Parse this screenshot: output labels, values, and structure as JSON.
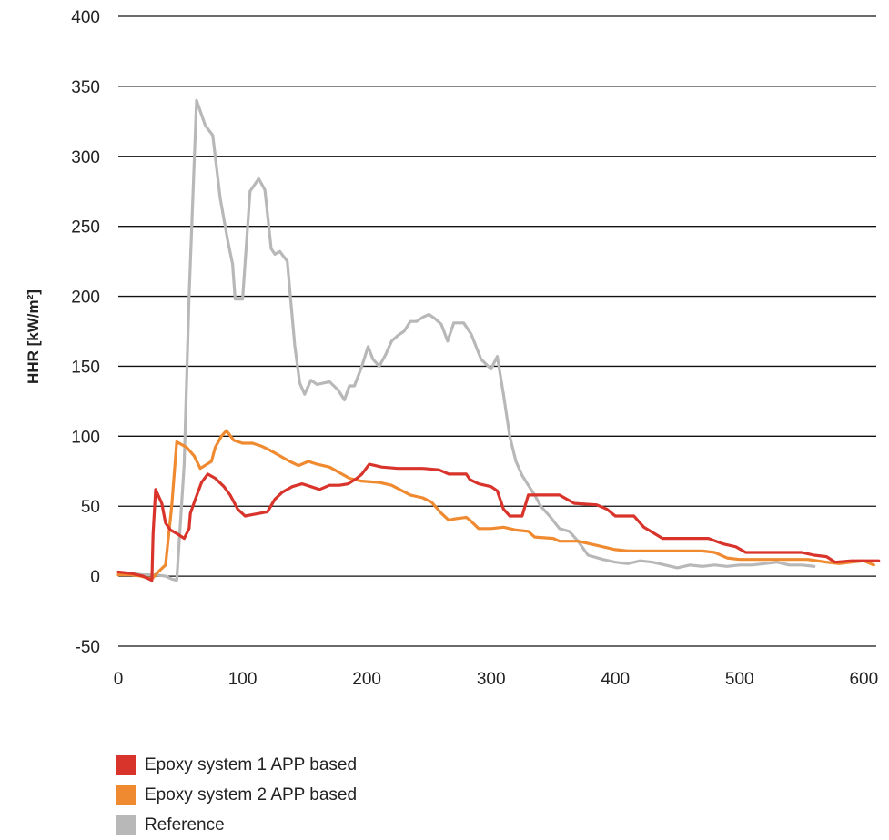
{
  "chart_data": {
    "type": "line",
    "title": "",
    "xlabel": "",
    "ylabel": "HHR [kW/m²]",
    "xlim": [
      0,
      610
    ],
    "ylim": [
      -50,
      400
    ],
    "x_ticks": [
      "0",
      "100",
      "200",
      "300",
      "400",
      "500",
      "600"
    ],
    "y_ticks": [
      "400",
      "350",
      "300",
      "250",
      "200",
      "150",
      "100",
      "50",
      "0",
      "-50"
    ],
    "grid": "horizontal",
    "legend_position": "bottom-left",
    "series": [
      {
        "name": "Epoxy system 1 APP based",
        "color": "#d9342b",
        "points": [
          [
            0,
            3
          ],
          [
            10,
            2
          ],
          [
            20,
            0
          ],
          [
            27,
            -3
          ],
          [
            28,
            30
          ],
          [
            30,
            62
          ],
          [
            35,
            52
          ],
          [
            38,
            38
          ],
          [
            42,
            33
          ],
          [
            48,
            30
          ],
          [
            53,
            27
          ],
          [
            57,
            34
          ],
          [
            58,
            45
          ],
          [
            62,
            55
          ],
          [
            67,
            67
          ],
          [
            72,
            73
          ],
          [
            78,
            70
          ],
          [
            85,
            64
          ],
          [
            90,
            58
          ],
          [
            96,
            48
          ],
          [
            102,
            43
          ],
          [
            108,
            44
          ],
          [
            114,
            45
          ],
          [
            120,
            46
          ],
          [
            126,
            55
          ],
          [
            132,
            60
          ],
          [
            140,
            64
          ],
          [
            148,
            66
          ],
          [
            155,
            64
          ],
          [
            162,
            62
          ],
          [
            170,
            65
          ],
          [
            178,
            65
          ],
          [
            185,
            66
          ],
          [
            192,
            70
          ],
          [
            196,
            73
          ],
          [
            202,
            80
          ],
          [
            212,
            78
          ],
          [
            225,
            77
          ],
          [
            245,
            77
          ],
          [
            258,
            76
          ],
          [
            266,
            73
          ],
          [
            280,
            73
          ],
          [
            283,
            69
          ],
          [
            290,
            66
          ],
          [
            300,
            64
          ],
          [
            305,
            61
          ],
          [
            310,
            48
          ],
          [
            315,
            43
          ],
          [
            325,
            43
          ],
          [
            330,
            58
          ],
          [
            355,
            58
          ],
          [
            367,
            52
          ],
          [
            385,
            51
          ],
          [
            393,
            48
          ],
          [
            400,
            43
          ],
          [
            415,
            43
          ],
          [
            423,
            35
          ],
          [
            438,
            27
          ],
          [
            475,
            27
          ],
          [
            487,
            23
          ],
          [
            497,
            21
          ],
          [
            505,
            17
          ],
          [
            550,
            17
          ],
          [
            560,
            15
          ],
          [
            570,
            14
          ],
          [
            577,
            10
          ],
          [
            590,
            11
          ],
          [
            612,
            11
          ]
        ]
      },
      {
        "name": "Epoxy system 2 APP based",
        "color": "#f08a30",
        "points": [
          [
            0,
            1
          ],
          [
            10,
            1
          ],
          [
            18,
            0
          ],
          [
            27,
            -2
          ],
          [
            32,
            3
          ],
          [
            38,
            8
          ],
          [
            43,
            50
          ],
          [
            47,
            96
          ],
          [
            55,
            92
          ],
          [
            61,
            86
          ],
          [
            66,
            77
          ],
          [
            75,
            82
          ],
          [
            78,
            92
          ],
          [
            83,
            100
          ],
          [
            87,
            104
          ],
          [
            93,
            97
          ],
          [
            100,
            95
          ],
          [
            108,
            95
          ],
          [
            115,
            93
          ],
          [
            122,
            90
          ],
          [
            130,
            86
          ],
          [
            138,
            82
          ],
          [
            145,
            79
          ],
          [
            153,
            82
          ],
          [
            160,
            80
          ],
          [
            170,
            78
          ],
          [
            180,
            73
          ],
          [
            186,
            70
          ],
          [
            195,
            68
          ],
          [
            210,
            67
          ],
          [
            220,
            65
          ],
          [
            235,
            58
          ],
          [
            245,
            56
          ],
          [
            252,
            53
          ],
          [
            260,
            45
          ],
          [
            266,
            40
          ],
          [
            271,
            41
          ],
          [
            280,
            42
          ],
          [
            283,
            40
          ],
          [
            290,
            34
          ],
          [
            300,
            34
          ],
          [
            310,
            35
          ],
          [
            320,
            33
          ],
          [
            330,
            32
          ],
          [
            335,
            28
          ],
          [
            350,
            27
          ],
          [
            355,
            25
          ],
          [
            370,
            25
          ],
          [
            380,
            23
          ],
          [
            390,
            21
          ],
          [
            400,
            19
          ],
          [
            410,
            18
          ],
          [
            470,
            18
          ],
          [
            480,
            17
          ],
          [
            490,
            13
          ],
          [
            500,
            12
          ],
          [
            555,
            12
          ],
          [
            570,
            10
          ],
          [
            580,
            9
          ],
          [
            590,
            10
          ],
          [
            600,
            11
          ],
          [
            608,
            8
          ]
        ]
      },
      {
        "name": "Reference",
        "color": "#b8b8b8",
        "points": [
          [
            0,
            1
          ],
          [
            10,
            2
          ],
          [
            20,
            1
          ],
          [
            30,
            1
          ],
          [
            38,
            0
          ],
          [
            43,
            -2
          ],
          [
            47,
            -3
          ],
          [
            53,
            80
          ],
          [
            57,
            200
          ],
          [
            63,
            340
          ],
          [
            70,
            322
          ],
          [
            76,
            315
          ],
          [
            82,
            270
          ],
          [
            88,
            240
          ],
          [
            92,
            223
          ],
          [
            94,
            198
          ],
          [
            100,
            198
          ],
          [
            106,
            275
          ],
          [
            113,
            284
          ],
          [
            118,
            276
          ],
          [
            123,
            234
          ],
          [
            126,
            230
          ],
          [
            130,
            232
          ],
          [
            136,
            225
          ],
          [
            142,
            165
          ],
          [
            146,
            138
          ],
          [
            150,
            130
          ],
          [
            155,
            140
          ],
          [
            160,
            137
          ],
          [
            165,
            138
          ],
          [
            170,
            139
          ],
          [
            177,
            133
          ],
          [
            182,
            126
          ],
          [
            186,
            136
          ],
          [
            190,
            136
          ],
          [
            196,
            150
          ],
          [
            201,
            164
          ],
          [
            205,
            155
          ],
          [
            210,
            150
          ],
          [
            215,
            158
          ],
          [
            220,
            168
          ],
          [
            225,
            172
          ],
          [
            230,
            175
          ],
          [
            235,
            182
          ],
          [
            240,
            182
          ],
          [
            245,
            185
          ],
          [
            250,
            187
          ],
          [
            255,
            184
          ],
          [
            260,
            180
          ],
          [
            265,
            168
          ],
          [
            270,
            181
          ],
          [
            278,
            181
          ],
          [
            284,
            173
          ],
          [
            292,
            155
          ],
          [
            300,
            148
          ],
          [
            305,
            157
          ],
          [
            310,
            130
          ],
          [
            315,
            100
          ],
          [
            320,
            82
          ],
          [
            325,
            72
          ],
          [
            330,
            65
          ],
          [
            335,
            58
          ],
          [
            340,
            50
          ],
          [
            348,
            42
          ],
          [
            355,
            34
          ],
          [
            363,
            32
          ],
          [
            370,
            25
          ],
          [
            378,
            15
          ],
          [
            390,
            12
          ],
          [
            400,
            10
          ],
          [
            410,
            9
          ],
          [
            420,
            11
          ],
          [
            430,
            10
          ],
          [
            440,
            8
          ],
          [
            450,
            6
          ],
          [
            460,
            8
          ],
          [
            470,
            7
          ],
          [
            480,
            8
          ],
          [
            490,
            7
          ],
          [
            500,
            8
          ],
          [
            510,
            8
          ],
          [
            520,
            9
          ],
          [
            530,
            10
          ],
          [
            540,
            8
          ],
          [
            550,
            8
          ],
          [
            560,
            7
          ]
        ]
      }
    ]
  }
}
